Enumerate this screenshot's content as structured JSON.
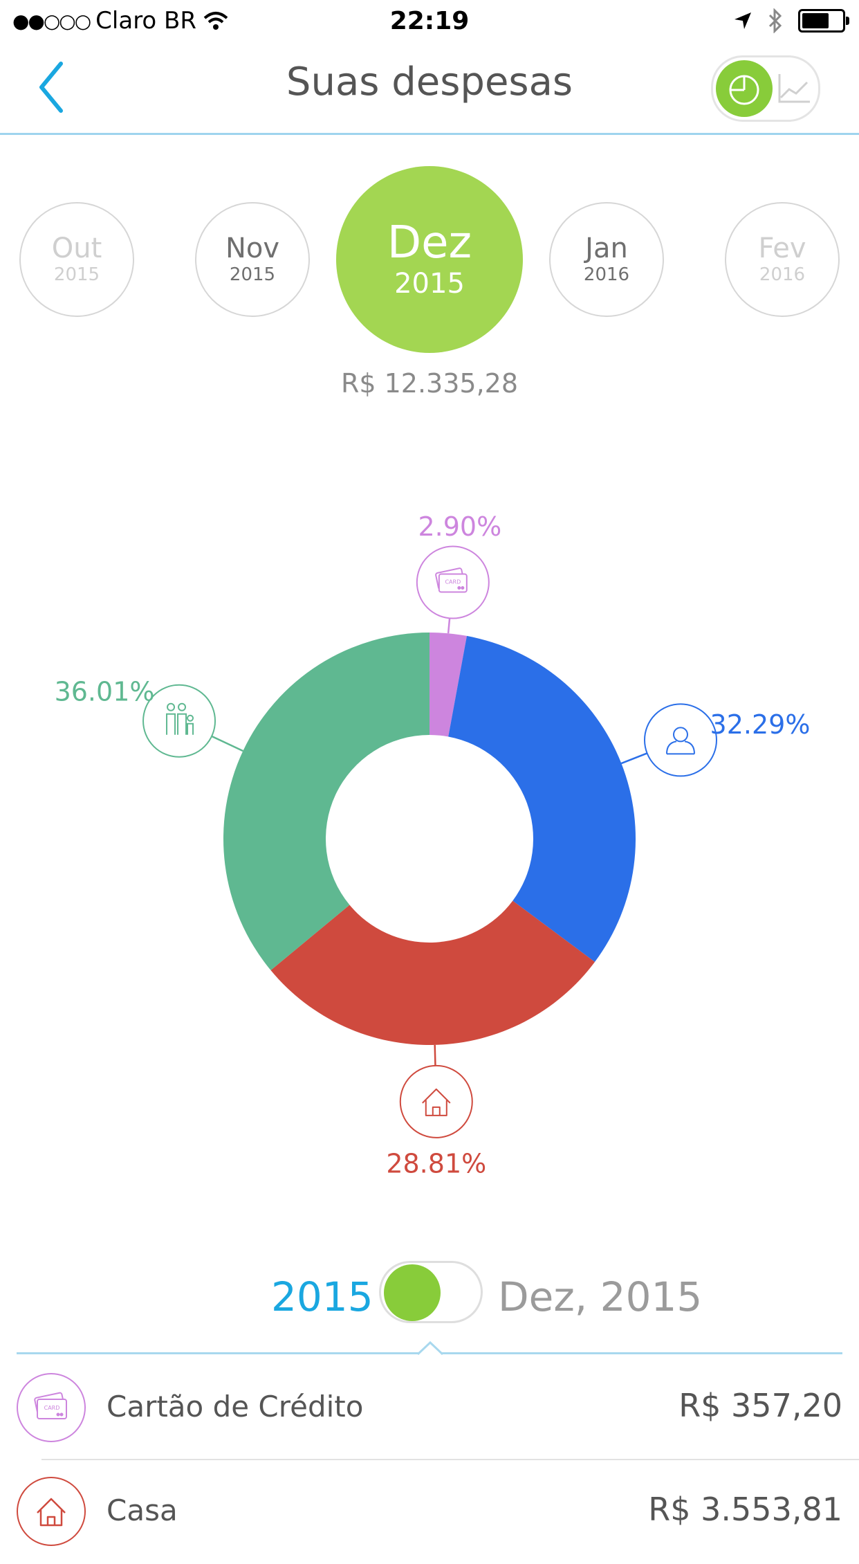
{
  "status_bar": {
    "signal_dots": "●●○○○",
    "carrier": "Claro BR",
    "time": "22:19"
  },
  "nav": {
    "title": "Suas despesas"
  },
  "months": [
    {
      "month": "Out",
      "year": "2015"
    },
    {
      "month": "Nov",
      "year": "2015"
    },
    {
      "month": "Dez",
      "year": "2015"
    },
    {
      "month": "Jan",
      "year": "2016"
    },
    {
      "month": "Fev",
      "year": "2016"
    }
  ],
  "selected_month_index": 2,
  "total": "R$ 12.335,28",
  "chart_data": {
    "type": "pie",
    "donut": true,
    "slices": [
      {
        "category": "Cartão de Crédito",
        "value": 2.9,
        "label": "2.90%",
        "color": "#cd85de",
        "icon": "credit-card-icon"
      },
      {
        "category": "Pessoal",
        "value": 32.29,
        "label": "32.29%",
        "color": "#2b6fe8",
        "icon": "person-icon"
      },
      {
        "category": "Casa",
        "value": 28.81,
        "label": "28.81%",
        "color": "#cf4a3e",
        "icon": "house-icon"
      },
      {
        "category": "Família",
        "value": 36.01,
        "label": "36.01%",
        "color": "#5fb891",
        "icon": "family-icon"
      }
    ]
  },
  "period": {
    "year_label": "2015",
    "month_label": "Dez, 2015"
  },
  "expenses": [
    {
      "name": "Cartão de Crédito",
      "value": "R$ 357,20",
      "icon": "credit-card-icon",
      "color": "#cd85de"
    },
    {
      "name": "Casa",
      "value": "R$ 3.553,81",
      "icon": "house-icon",
      "color": "#cf4a3e"
    }
  ],
  "colors": {
    "accent_blue": "#1aa7e0",
    "green": "#88cc3a",
    "selected_month": "#a3d652"
  }
}
